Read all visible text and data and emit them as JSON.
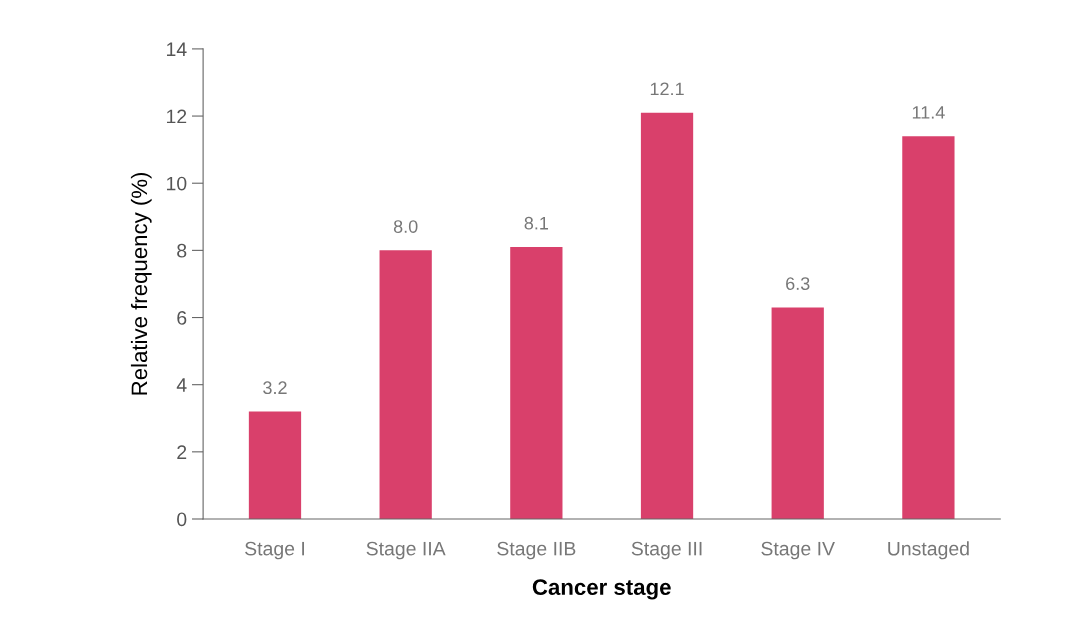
{
  "chart_data": {
    "type": "bar",
    "xlabel": "Cancer stage",
    "ylabel": "Relative frequency (%)",
    "categories": [
      "Stage I",
      "Stage IIA",
      "Stage IIB",
      "Stage III",
      "Stage IV",
      "Unstaged"
    ],
    "values": [
      3.2,
      8.0,
      8.1,
      12.1,
      6.3,
      11.4
    ],
    "value_labels": [
      "3.2",
      "8.0",
      "8.1",
      "12.1",
      "6.3",
      "11.4"
    ],
    "color": "#d9406b",
    "ylim": [
      0,
      14
    ],
    "yticks": [
      0,
      2,
      4,
      6,
      8,
      10,
      12,
      14
    ],
    "grid": false
  }
}
